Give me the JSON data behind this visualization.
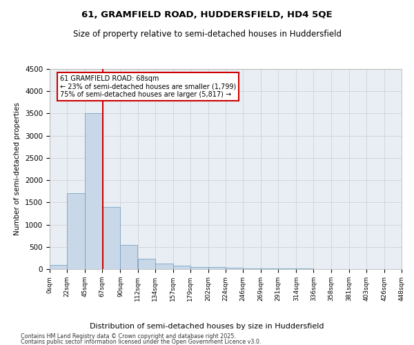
{
  "title1": "61, GRAMFIELD ROAD, HUDDERSFIELD, HD4 5QE",
  "title2": "Size of property relative to semi-detached houses in Huddersfield",
  "xlabel": "Distribution of semi-detached houses by size in Huddersfield",
  "ylabel": "Number of semi-detached properties",
  "annotation_title": "61 GRAMFIELD ROAD: 68sqm",
  "annotation_line1": "← 23% of semi-detached houses are smaller (1,799)",
  "annotation_line2": "75% of semi-detached houses are larger (5,817) →",
  "footer1": "Contains HM Land Registry data © Crown copyright and database right 2025.",
  "footer2": "Contains public sector information licensed under the Open Government Licence v3.0.",
  "bar_color": "#c8d8e8",
  "bar_edge_color": "#6699bb",
  "grid_color": "#cccccc",
  "bg_color": "#e8eef4",
  "red_line_color": "#cc0000",
  "annotation_box_color": "#cc0000",
  "bin_edges": [
    0,
    22,
    45,
    67,
    90,
    112,
    134,
    157,
    179,
    202,
    224,
    246,
    269,
    291,
    314,
    336,
    358,
    381,
    403,
    426,
    448
  ],
  "bin_counts": [
    100,
    1700,
    3500,
    1400,
    550,
    230,
    120,
    70,
    50,
    40,
    30,
    20,
    15,
    10,
    8,
    5,
    4,
    3,
    2,
    2
  ],
  "property_size": 68,
  "ylim": [
    0,
    4500
  ],
  "yticks": [
    0,
    500,
    1000,
    1500,
    2000,
    2500,
    3000,
    3500,
    4000,
    4500
  ]
}
